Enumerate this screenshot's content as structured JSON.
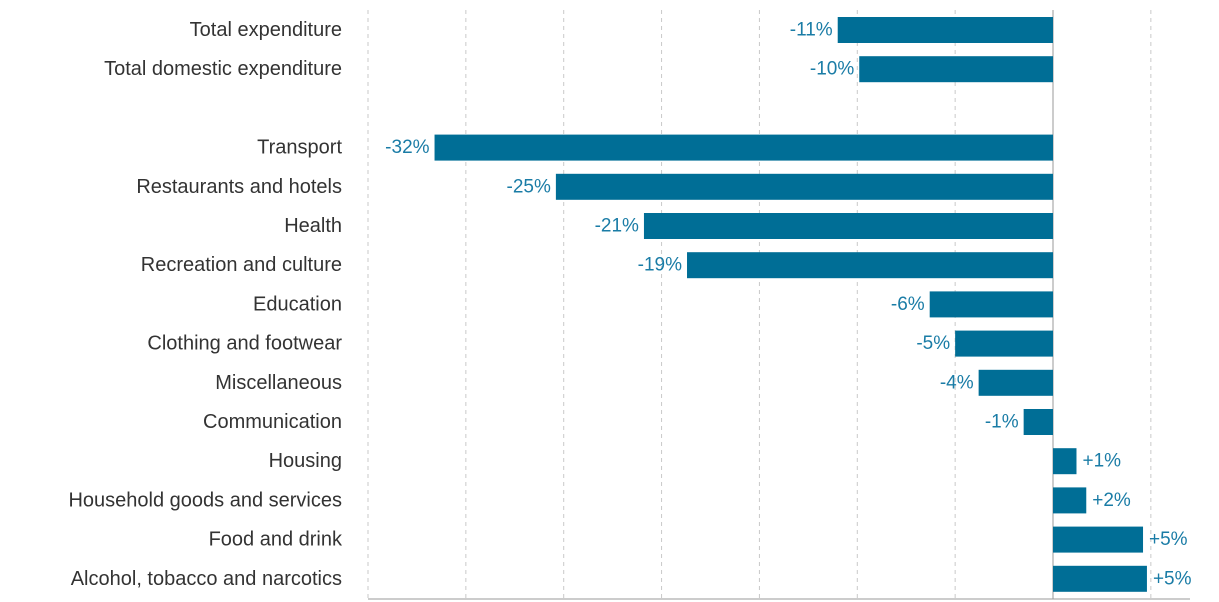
{
  "chart_data": {
    "type": "bar",
    "orientation": "horizontal",
    "title": "",
    "xlabel": "",
    "ylabel": "",
    "xlim": [
      -35,
      7
    ],
    "grid": true,
    "bar_color": "#006e96",
    "label_color": "#1a7ca6",
    "categories": [
      "Total expenditure",
      "Total domestic expenditure",
      "",
      "Transport",
      "Restaurants and hotels",
      "Health",
      "Recreation and culture",
      "Education",
      "Clothing and footwear",
      "Miscellaneous",
      "Communication",
      "Housing",
      "Household goods and services",
      "Food and drink",
      "Alcohol,  tobacco and narcotics"
    ],
    "values": [
      -11,
      -9.9,
      null,
      -31.6,
      -25.4,
      -20.9,
      -18.7,
      -6.3,
      -5.0,
      -3.8,
      -1.5,
      1.2,
      1.7,
      4.6,
      4.8
    ],
    "data_labels": [
      "-11%",
      "-10%",
      "",
      "-32%",
      "-25%",
      "-21%",
      "-19%",
      "-6%",
      "-5%",
      "-4%",
      "-1%",
      "+1%",
      "+2%",
      "+5%",
      "+5%"
    ]
  }
}
